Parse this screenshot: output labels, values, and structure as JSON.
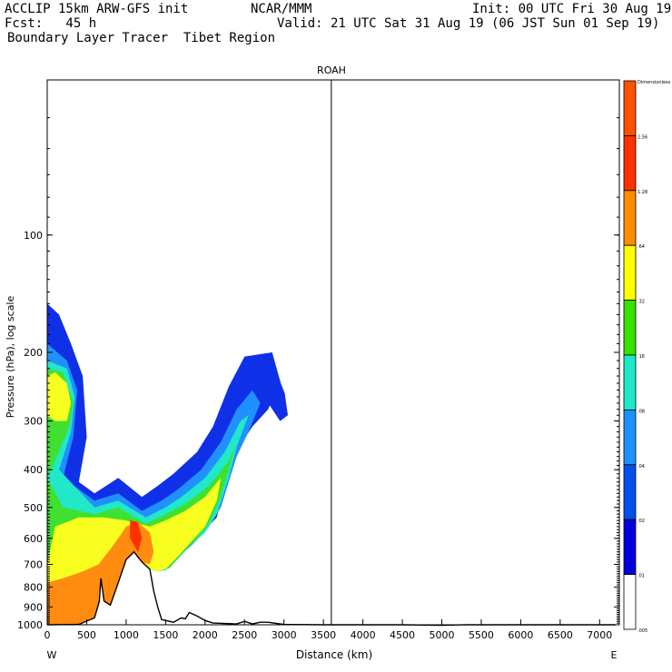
{
  "header": {
    "line1_left": "ACCLIP 15km ARW-GFS init",
    "line1_mid": "NCAR/MMM",
    "line1_right": "Init: 00 UTC Fri 30 Aug 19",
    "line2_left": "Fcst:   45 h",
    "line2_right": "Valid: 21 UTC Sat 31 Aug 19 (06 JST Sun 01 Sep 19)",
    "line3": "Boundary Layer Tracer  Tibet Region"
  },
  "chart_data": {
    "type": "heatmap",
    "title": "ROAH",
    "xlabel": "Distance (km)",
    "ylabel": "Pressure (hPa), log scale",
    "x_ticks": [
      0,
      500,
      1000,
      1500,
      2000,
      2500,
      3000,
      3500,
      4000,
      4500,
      5000,
      5500,
      6000,
      6500,
      7000
    ],
    "xlim": [
      0,
      7200
    ],
    "y_ticks": [
      100,
      200,
      300,
      400,
      500,
      600,
      700,
      800,
      900,
      1000
    ],
    "ylim": [
      1000,
      40
    ],
    "y_scale": "log",
    "left_end_label": "W",
    "right_end_label": "E",
    "vertical_marker_km": 3600,
    "colorbar": {
      "levels": [
        "Dimensionless",
        "2.56",
        "1.28",
        ".64",
        ".32",
        ".16",
        ".08",
        ".04",
        ".02",
        ".01",
        ".005"
      ],
      "colors": [
        "#ff5000",
        "#ff3000",
        "#ff8c00",
        "#ffff00",
        "#38e000",
        "#1de8c8",
        "#1e90ff",
        "#0050f0",
        "#0000e0",
        "#ffffff"
      ]
    },
    "palette": {
      "blue": "#1030e8",
      "lightblue": "#2090ff",
      "cyan": "#20e8c8",
      "green": "#40e030",
      "yellow": "#f8ff20",
      "orange": "#ff8c10",
      "red": "#ff3000"
    },
    "terrain_profile": [
      [
        0,
        1000
      ],
      [
        400,
        998
      ],
      [
        600,
        960
      ],
      [
        660,
        870
      ],
      [
        680,
        760
      ],
      [
        720,
        870
      ],
      [
        800,
        890
      ],
      [
        900,
        780
      ],
      [
        1000,
        680
      ],
      [
        1100,
        650
      ],
      [
        1150,
        670
      ],
      [
        1200,
        690
      ],
      [
        1300,
        720
      ],
      [
        1350,
        820
      ],
      [
        1400,
        900
      ],
      [
        1450,
        970
      ],
      [
        1600,
        985
      ],
      [
        1700,
        960
      ],
      [
        1750,
        965
      ],
      [
        1800,
        930
      ],
      [
        1900,
        950
      ],
      [
        2000,
        975
      ],
      [
        2100,
        990
      ],
      [
        2400,
        995
      ],
      [
        2500,
        980
      ],
      [
        2600,
        995
      ],
      [
        2700,
        985
      ],
      [
        2800,
        985
      ],
      [
        2900,
        992
      ],
      [
        3000,
        998
      ],
      [
        3500,
        1000
      ],
      [
        4500,
        1000
      ],
      [
        5000,
        1003
      ],
      [
        5300,
        1000
      ],
      [
        6000,
        1000
      ],
      [
        7200,
        1000
      ]
    ],
    "tracer_contours": [
      {
        "level": ".01",
        "points": [
          [
            0,
            150
          ],
          [
            150,
            160
          ],
          [
            300,
            190
          ],
          [
            450,
            230
          ],
          [
            500,
            330
          ],
          [
            400,
            430
          ],
          [
            600,
            460
          ],
          [
            900,
            420
          ],
          [
            1200,
            470
          ],
          [
            1400,
            440
          ],
          [
            1600,
            410
          ],
          [
            1900,
            360
          ],
          [
            2100,
            310
          ],
          [
            2300,
            245
          ],
          [
            2500,
            205
          ],
          [
            2850,
            200
          ],
          [
            2960,
            240
          ],
          [
            3010,
            255
          ],
          [
            3050,
            290
          ],
          [
            2950,
            300
          ],
          [
            2800,
            270
          ],
          [
            2600,
            300
          ],
          [
            2400,
            330
          ],
          [
            2250,
            380
          ],
          [
            2150,
            470
          ],
          [
            2100,
            520
          ],
          [
            2050,
            560
          ],
          [
            1900,
            600
          ],
          [
            1700,
            640
          ],
          [
            1550,
            700
          ],
          [
            1400,
            730
          ],
          [
            1300,
            720
          ],
          [
            1200,
            690
          ],
          [
            1100,
            650
          ],
          [
            1000,
            680
          ],
          [
            900,
            780
          ],
          [
            800,
            890
          ],
          [
            720,
            870
          ],
          [
            680,
            760
          ],
          [
            660,
            870
          ],
          [
            600,
            960
          ],
          [
            400,
            998
          ],
          [
            0,
            1000
          ]
        ]
      },
      {
        "level": ".02",
        "points": [
          [
            0,
            170
          ],
          [
            200,
            185
          ],
          [
            400,
            230
          ],
          [
            420,
            330
          ],
          [
            300,
            420
          ],
          [
            600,
            470
          ],
          [
            900,
            440
          ],
          [
            1200,
            490
          ],
          [
            1400,
            460
          ],
          [
            1600,
            430
          ],
          [
            1900,
            380
          ],
          [
            2150,
            320
          ],
          [
            2350,
            260
          ],
          [
            2550,
            225
          ],
          [
            2800,
            220
          ],
          [
            2900,
            250
          ],
          [
            2800,
            280
          ],
          [
            2600,
            310
          ],
          [
            2450,
            345
          ],
          [
            2300,
            400
          ],
          [
            2200,
            480
          ],
          [
            2150,
            530
          ],
          [
            2000,
            570
          ],
          [
            1850,
            610
          ],
          [
            1700,
            650
          ],
          [
            1550,
            710
          ],
          [
            1400,
            730
          ],
          [
            1300,
            720
          ],
          [
            1200,
            690
          ],
          [
            1100,
            650
          ],
          [
            1000,
            680
          ],
          [
            900,
            780
          ],
          [
            800,
            890
          ],
          [
            720,
            870
          ],
          [
            680,
            760
          ],
          [
            660,
            870
          ],
          [
            600,
            960
          ],
          [
            400,
            998
          ],
          [
            0,
            1000
          ]
        ]
      },
      {
        "level": ".04",
        "points": [
          [
            0,
            190
          ],
          [
            250,
            210
          ],
          [
            380,
            250
          ],
          [
            330,
            330
          ],
          [
            200,
            420
          ],
          [
            600,
            480
          ],
          [
            900,
            460
          ],
          [
            1200,
            510
          ],
          [
            1450,
            480
          ],
          [
            1650,
            450
          ],
          [
            1950,
            400
          ],
          [
            2200,
            340
          ],
          [
            2400,
            280
          ],
          [
            2600,
            250
          ],
          [
            2700,
            270
          ],
          [
            2550,
            320
          ],
          [
            2400,
            370
          ],
          [
            2300,
            430
          ],
          [
            2200,
            500
          ],
          [
            2050,
            560
          ],
          [
            1850,
            620
          ],
          [
            1700,
            660
          ],
          [
            1550,
            715
          ],
          [
            1400,
            730
          ],
          [
            1300,
            720
          ],
          [
            1200,
            690
          ],
          [
            1100,
            650
          ],
          [
            1000,
            680
          ],
          [
            900,
            780
          ],
          [
            800,
            890
          ],
          [
            720,
            870
          ],
          [
            680,
            760
          ],
          [
            660,
            870
          ],
          [
            600,
            960
          ],
          [
            400,
            998
          ],
          [
            0,
            1000
          ]
        ]
      },
      {
        "level": ".08",
        "points": [
          [
            0,
            210
          ],
          [
            250,
            220
          ],
          [
            350,
            260
          ],
          [
            300,
            320
          ],
          [
            150,
            400
          ],
          [
            600,
            500
          ],
          [
            900,
            480
          ],
          [
            1250,
            530
          ],
          [
            1500,
            500
          ],
          [
            1700,
            470
          ],
          [
            2000,
            420
          ],
          [
            2250,
            360
          ],
          [
            2450,
            300
          ],
          [
            2550,
            290
          ],
          [
            2400,
            350
          ],
          [
            2300,
            420
          ],
          [
            2150,
            520
          ],
          [
            2000,
            580
          ],
          [
            1800,
            630
          ],
          [
            1650,
            680
          ],
          [
            1500,
            725
          ],
          [
            1400,
            730
          ],
          [
            1300,
            720
          ],
          [
            1200,
            690
          ],
          [
            1100,
            650
          ],
          [
            1000,
            680
          ],
          [
            900,
            780
          ],
          [
            800,
            890
          ],
          [
            720,
            870
          ],
          [
            680,
            760
          ],
          [
            660,
            870
          ],
          [
            600,
            960
          ],
          [
            400,
            998
          ],
          [
            0,
            1000
          ]
        ]
      },
      {
        "level": ".16",
        "points": [
          [
            0,
            220
          ],
          [
            200,
            225
          ],
          [
            330,
            270
          ],
          [
            280,
            310
          ],
          [
            100,
            380
          ],
          [
            0,
            420
          ],
          [
            200,
            500
          ],
          [
            600,
            520
          ],
          [
            900,
            500
          ],
          [
            1250,
            550
          ],
          [
            1500,
            520
          ],
          [
            1750,
            490
          ],
          [
            2050,
            440
          ],
          [
            2300,
            380
          ],
          [
            2400,
            340
          ],
          [
            2300,
            400
          ],
          [
            2200,
            470
          ],
          [
            2050,
            550
          ],
          [
            1900,
            600
          ],
          [
            1700,
            660
          ],
          [
            1550,
            715
          ],
          [
            1400,
            730
          ],
          [
            1300,
            720
          ],
          [
            1200,
            690
          ],
          [
            1100,
            650
          ],
          [
            1000,
            680
          ],
          [
            900,
            780
          ],
          [
            800,
            890
          ],
          [
            720,
            870
          ],
          [
            680,
            760
          ],
          [
            660,
            870
          ],
          [
            600,
            960
          ],
          [
            400,
            998
          ],
          [
            0,
            1000
          ]
        ]
      },
      {
        "level": ".32",
        "points": [
          [
            0,
            230
          ],
          [
            100,
            225
          ],
          [
            250,
            240
          ],
          [
            300,
            270
          ],
          [
            250,
            300
          ],
          [
            100,
            300
          ],
          [
            0,
            290
          ]
        ]
      },
      {
        "level": ".32",
        "points": [
          [
            100,
            560
          ],
          [
            400,
            530
          ],
          [
            700,
            530
          ],
          [
            1000,
            540
          ],
          [
            1300,
            560
          ],
          [
            1500,
            540
          ],
          [
            1750,
            510
          ],
          [
            2000,
            470
          ],
          [
            2200,
            420
          ],
          [
            2150,
            480
          ],
          [
            2000,
            560
          ],
          [
            1800,
            620
          ],
          [
            1650,
            670
          ],
          [
            1500,
            720
          ],
          [
            1400,
            730
          ],
          [
            1300,
            720
          ],
          [
            1200,
            690
          ],
          [
            1100,
            650
          ],
          [
            1000,
            680
          ],
          [
            900,
            780
          ],
          [
            800,
            890
          ],
          [
            720,
            870
          ],
          [
            680,
            760
          ],
          [
            660,
            870
          ],
          [
            600,
            960
          ],
          [
            400,
            998
          ],
          [
            0,
            1000
          ],
          [
            0,
            700
          ]
        ]
      },
      {
        "level": ".64",
        "points": [
          [
            0,
            780
          ],
          [
            200,
            760
          ],
          [
            450,
            730
          ],
          [
            650,
            700
          ],
          [
            800,
            640
          ],
          [
            900,
            600
          ],
          [
            1000,
            560
          ],
          [
            1150,
            545
          ],
          [
            1300,
            580
          ],
          [
            1350,
            650
          ],
          [
            1300,
            700
          ],
          [
            1200,
            690
          ],
          [
            1100,
            650
          ],
          [
            1000,
            680
          ],
          [
            900,
            780
          ],
          [
            800,
            890
          ],
          [
            720,
            870
          ],
          [
            680,
            760
          ],
          [
            660,
            870
          ],
          [
            600,
            960
          ],
          [
            400,
            998
          ],
          [
            0,
            1000
          ]
        ]
      },
      {
        "level": "1.28",
        "points": [
          [
            1050,
            540
          ],
          [
            1150,
            545
          ],
          [
            1200,
            600
          ],
          [
            1150,
            650
          ],
          [
            1050,
            600
          ]
        ]
      }
    ]
  }
}
